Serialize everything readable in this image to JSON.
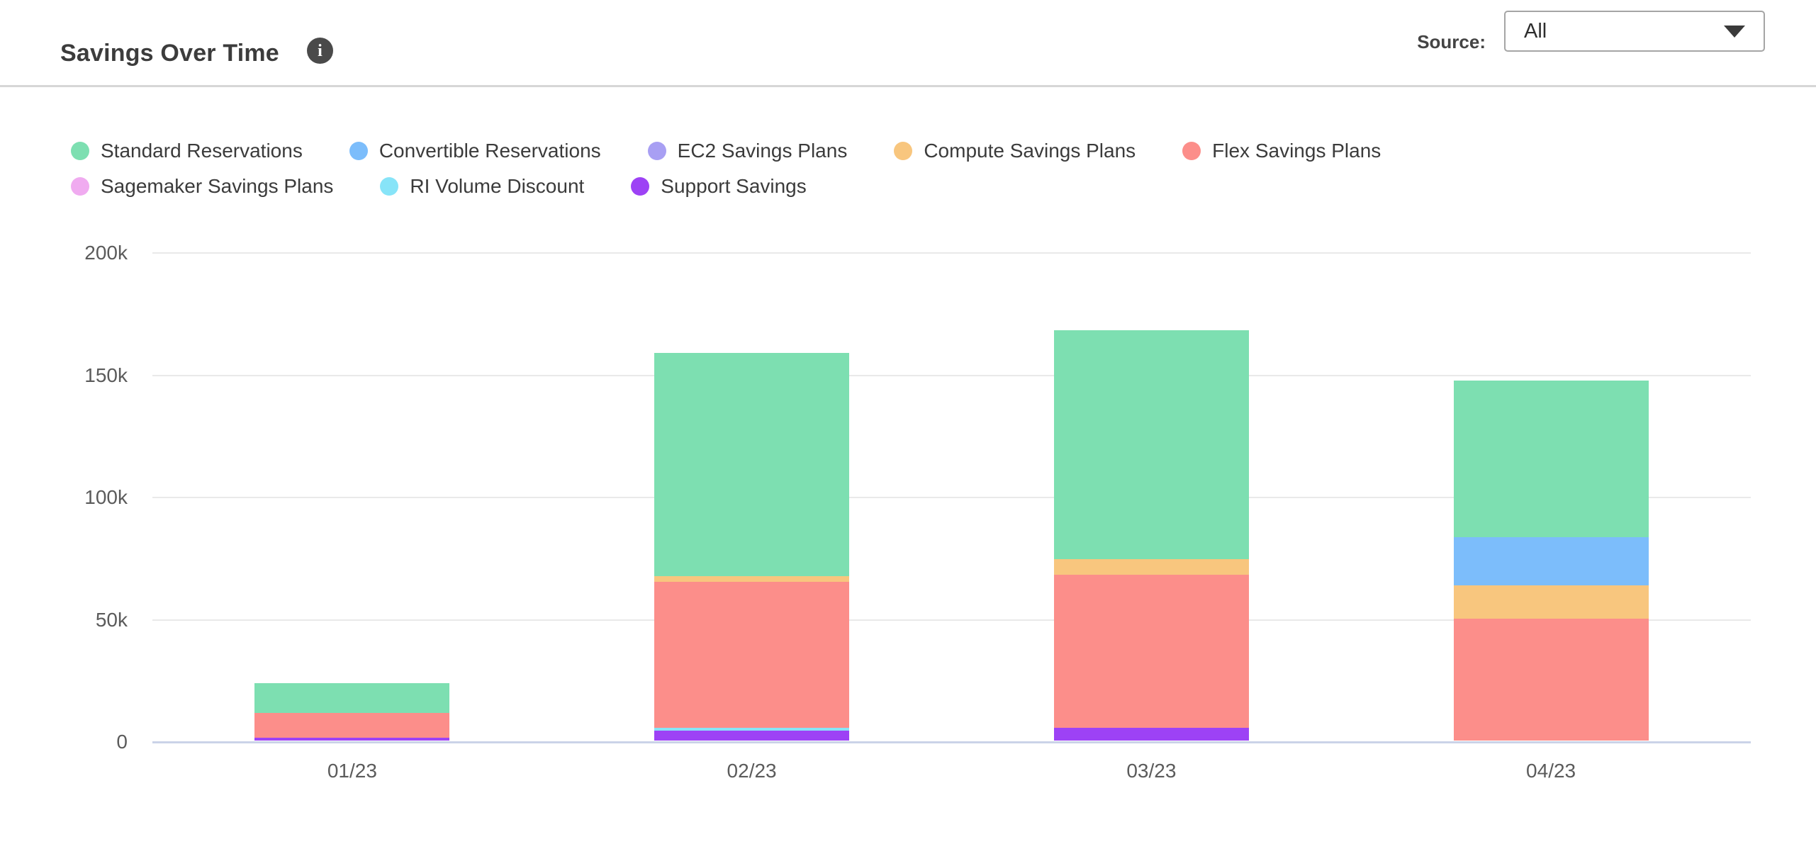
{
  "panel": {
    "title": "Savings Over Time",
    "info_icon": "i",
    "source": {
      "label": "Source:",
      "selected": "All"
    }
  },
  "chart_data": {
    "type": "bar",
    "stacked": true,
    "title": "Savings Over Time",
    "categories": [
      "01/23",
      "02/23",
      "03/23",
      "04/23"
    ],
    "series": [
      {
        "name": "Standard Reservations",
        "color": "#7DDFB1",
        "values": [
          12200,
          91200,
          93600,
          64000
        ]
      },
      {
        "name": "Convertible Reservations",
        "color": "#7CBDFB",
        "values": [
          0,
          0,
          0,
          19700
        ]
      },
      {
        "name": "EC2 Savings Plans",
        "color": "#A89FF3",
        "values": [
          0,
          0,
          0,
          0
        ]
      },
      {
        "name": "Compute Savings Plans",
        "color": "#F8C67E",
        "values": [
          0,
          2300,
          6400,
          13600
        ]
      },
      {
        "name": "Flex Savings Plans",
        "color": "#FC8E8A",
        "values": [
          10100,
          59700,
          62600,
          49900
        ]
      },
      {
        "name": "Sagemaker Savings Plans",
        "color": "#F0ABF0",
        "values": [
          0,
          0,
          0,
          0
        ]
      },
      {
        "name": "RI Volume Discount",
        "color": "#87E4F8",
        "values": [
          0,
          1200,
          0,
          0
        ]
      },
      {
        "name": "Support Savings",
        "color": "#9D42F5",
        "values": [
          1200,
          4100,
          5200,
          0
        ]
      }
    ],
    "stack_order": "reverse of series list: Support Savings at bottom, Standard Reservations on top",
    "totals": [
      23500,
      158500,
      167800,
      147200
    ],
    "y_ticks": [
      {
        "value": 0,
        "label": "0"
      },
      {
        "value": 50000,
        "label": "50k"
      },
      {
        "value": 100000,
        "label": "100k"
      },
      {
        "value": 150000,
        "label": "150k"
      },
      {
        "value": 200000,
        "label": "200k"
      }
    ],
    "ylim": [
      0,
      200000
    ],
    "grid": true,
    "legend_position": "top",
    "legend_row_break": 5
  },
  "colors": {
    "axis_line": "#CBD3E8",
    "gridline": "#E9E9E9",
    "header_divider": "#D6D6D6",
    "title_text": "#3C3C3C",
    "legend_text": "#3B3B3B",
    "axis_label_text": "#5B5B5B",
    "info_icon_bg": "#4A4A4A",
    "dropdown_border": "#A5A5A5"
  }
}
